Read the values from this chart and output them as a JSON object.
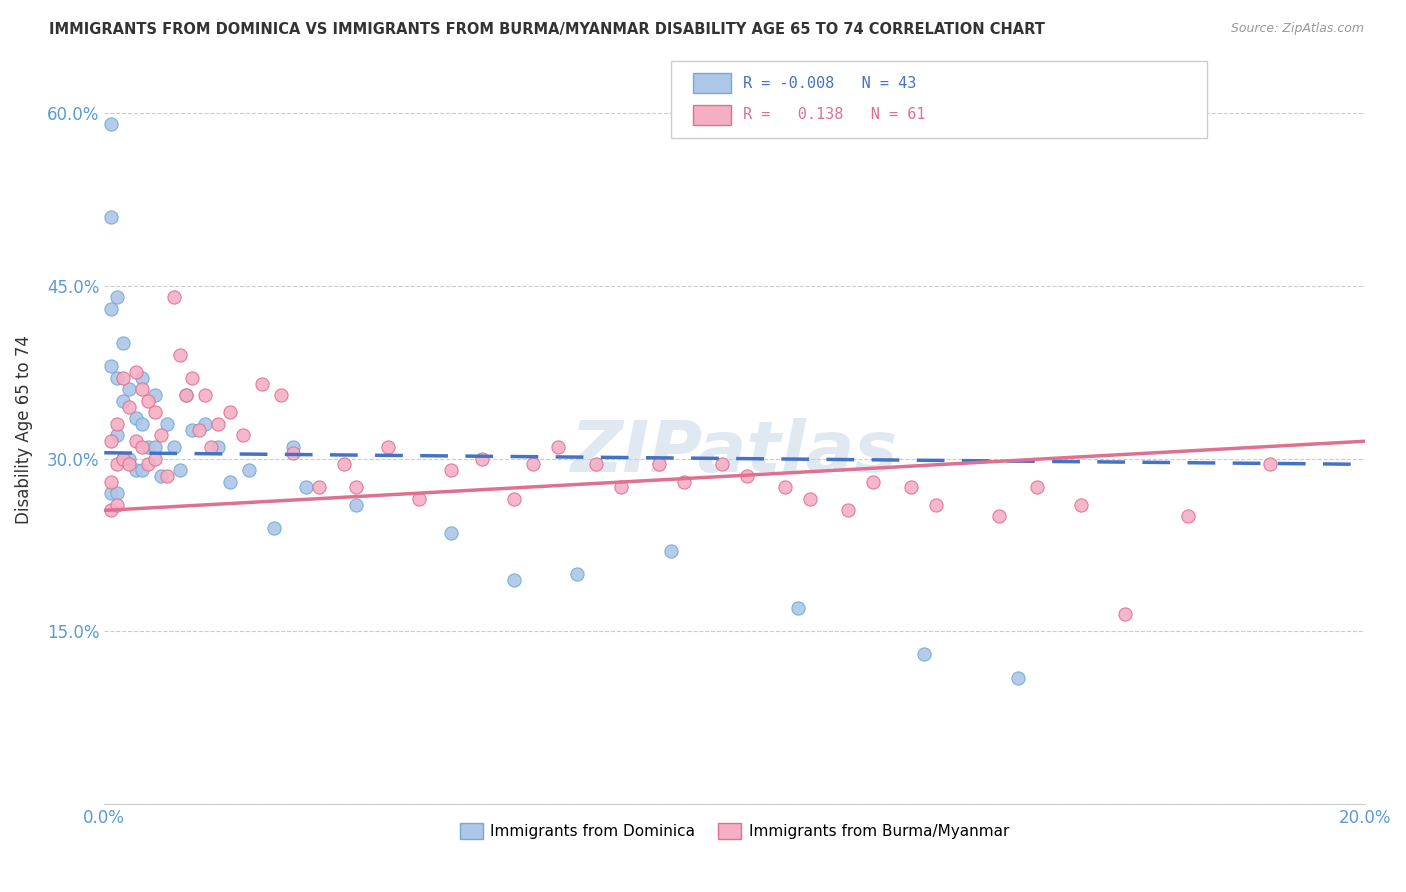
{
  "title": "IMMIGRANTS FROM DOMINICA VS IMMIGRANTS FROM BURMA/MYANMAR DISABILITY AGE 65 TO 74 CORRELATION CHART",
  "source": "Source: ZipAtlas.com",
  "ylabel": "Disability Age 65 to 74",
  "xlim": [
    0.0,
    0.2
  ],
  "ylim": [
    0.0,
    0.65
  ],
  "xtick_positions": [
    0.0,
    0.04,
    0.08,
    0.12,
    0.16,
    0.2
  ],
  "xticklabels": [
    "0.0%",
    "",
    "",
    "",
    "",
    "20.0%"
  ],
  "ytick_positions": [
    0.0,
    0.15,
    0.3,
    0.45,
    0.6
  ],
  "yticklabels": [
    "",
    "15.0%",
    "30.0%",
    "45.0%",
    "60.0%"
  ],
  "legend_labels": [
    "Immigrants from Dominica",
    "Immigrants from Burma/Myanmar"
  ],
  "legend_R": [
    "-0.008",
    "0.138"
  ],
  "legend_N": [
    "43",
    "61"
  ],
  "dominica_fill": "#aec6e8",
  "dominica_edge": "#6baed6",
  "burma_fill": "#f4afc4",
  "burma_edge": "#e07090",
  "dom_line_color": "#4472c4",
  "bur_line_color": "#e07090",
  "dom_line_y0": 0.305,
  "dom_line_y1": 0.295,
  "bur_line_y0": 0.255,
  "bur_line_y1": 0.315,
  "watermark": "ZIPatlas",
  "dominica_x": [
    0.001,
    0.001,
    0.001,
    0.001,
    0.001,
    0.002,
    0.002,
    0.002,
    0.002,
    0.003,
    0.003,
    0.003,
    0.004,
    0.004,
    0.005,
    0.005,
    0.006,
    0.006,
    0.006,
    0.007,
    0.008,
    0.008,
    0.009,
    0.01,
    0.011,
    0.012,
    0.013,
    0.014,
    0.016,
    0.018,
    0.02,
    0.023,
    0.027,
    0.03,
    0.032,
    0.04,
    0.055,
    0.065,
    0.075,
    0.09,
    0.11,
    0.13,
    0.145
  ],
  "dominica_y": [
    0.59,
    0.51,
    0.43,
    0.38,
    0.27,
    0.44,
    0.37,
    0.32,
    0.27,
    0.4,
    0.35,
    0.3,
    0.36,
    0.3,
    0.335,
    0.29,
    0.37,
    0.33,
    0.29,
    0.31,
    0.355,
    0.31,
    0.285,
    0.33,
    0.31,
    0.29,
    0.355,
    0.325,
    0.33,
    0.31,
    0.28,
    0.29,
    0.24,
    0.31,
    0.275,
    0.26,
    0.235,
    0.195,
    0.2,
    0.22,
    0.17,
    0.13,
    0.11
  ],
  "burma_x": [
    0.001,
    0.001,
    0.001,
    0.002,
    0.002,
    0.002,
    0.003,
    0.003,
    0.004,
    0.004,
    0.005,
    0.005,
    0.006,
    0.006,
    0.007,
    0.007,
    0.008,
    0.008,
    0.009,
    0.01,
    0.011,
    0.012,
    0.013,
    0.014,
    0.015,
    0.016,
    0.017,
    0.018,
    0.02,
    0.022,
    0.025,
    0.028,
    0.03,
    0.034,
    0.038,
    0.04,
    0.045,
    0.05,
    0.055,
    0.06,
    0.065,
    0.068,
    0.072,
    0.078,
    0.082,
    0.088,
    0.092,
    0.098,
    0.102,
    0.108,
    0.112,
    0.118,
    0.122,
    0.128,
    0.132,
    0.142,
    0.148,
    0.155,
    0.162,
    0.172,
    0.185
  ],
  "burma_y": [
    0.315,
    0.28,
    0.255,
    0.33,
    0.295,
    0.26,
    0.37,
    0.3,
    0.345,
    0.295,
    0.375,
    0.315,
    0.36,
    0.31,
    0.35,
    0.295,
    0.34,
    0.3,
    0.32,
    0.285,
    0.44,
    0.39,
    0.355,
    0.37,
    0.325,
    0.355,
    0.31,
    0.33,
    0.34,
    0.32,
    0.365,
    0.355,
    0.305,
    0.275,
    0.295,
    0.275,
    0.31,
    0.265,
    0.29,
    0.3,
    0.265,
    0.295,
    0.31,
    0.295,
    0.275,
    0.295,
    0.28,
    0.295,
    0.285,
    0.275,
    0.265,
    0.255,
    0.28,
    0.275,
    0.26,
    0.25,
    0.275,
    0.26,
    0.165,
    0.25,
    0.295
  ]
}
